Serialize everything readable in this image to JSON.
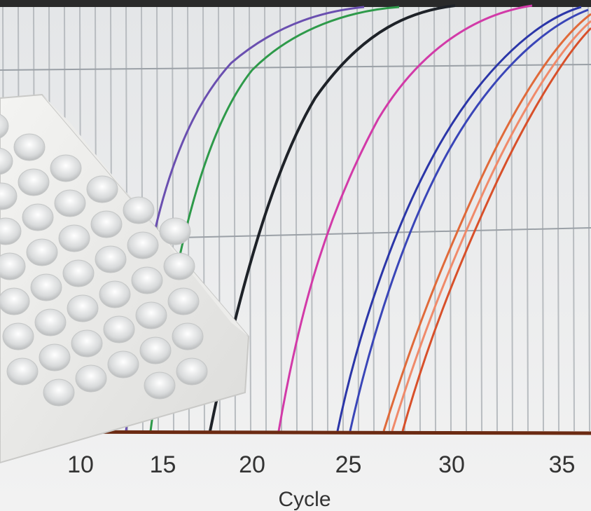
{
  "x_axis": {
    "ticks": [
      10,
      15,
      20,
      25,
      30,
      35
    ],
    "label": "Cycle"
  }
}
